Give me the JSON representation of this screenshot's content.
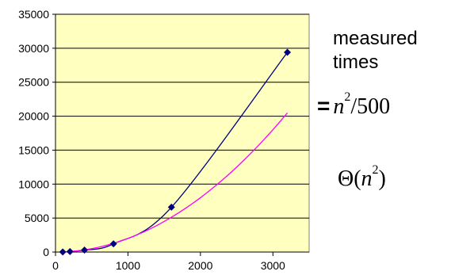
{
  "chart_data": {
    "type": "line",
    "x": [
      100,
      200,
      400,
      800,
      1600,
      3200
    ],
    "series": [
      {
        "values": [
          18,
          72,
          290,
          1210,
          6600,
          29400
        ],
        "color": "#000080",
        "marker": "diamond"
      },
      {
        "curve": "n^2/500",
        "x": [
          100,
          200,
          400,
          600,
          800,
          1000,
          1200,
          1400,
          1600,
          1800,
          2000,
          2200,
          2400,
          2600,
          2800,
          3000,
          3200
        ],
        "values": [
          20,
          80,
          320,
          720,
          1280,
          2000,
          2880,
          3920,
          5120,
          6480,
          8000,
          9680,
          11520,
          13520,
          15680,
          18000,
          20480
        ],
        "color": "#ff00ff"
      }
    ],
    "xlim": [
      0,
      3500
    ],
    "ylim": [
      0,
      35000
    ],
    "x_ticks": [
      0,
      1000,
      2000,
      3000
    ],
    "y_ticks": [
      0,
      5000,
      10000,
      15000,
      20000,
      25000,
      30000,
      35000
    ],
    "grid": "horizontal",
    "plot_bg": "#ffffc0",
    "annotations": {
      "measured_line1": "measured",
      "measured_line2": "times",
      "eq_sign": "=",
      "fit_n": "n",
      "fit_exp": "2",
      "fit_rest": "/500",
      "theta_open": "Θ(",
      "theta_n": "n",
      "theta_exp": "2",
      "theta_close": ")"
    }
  }
}
